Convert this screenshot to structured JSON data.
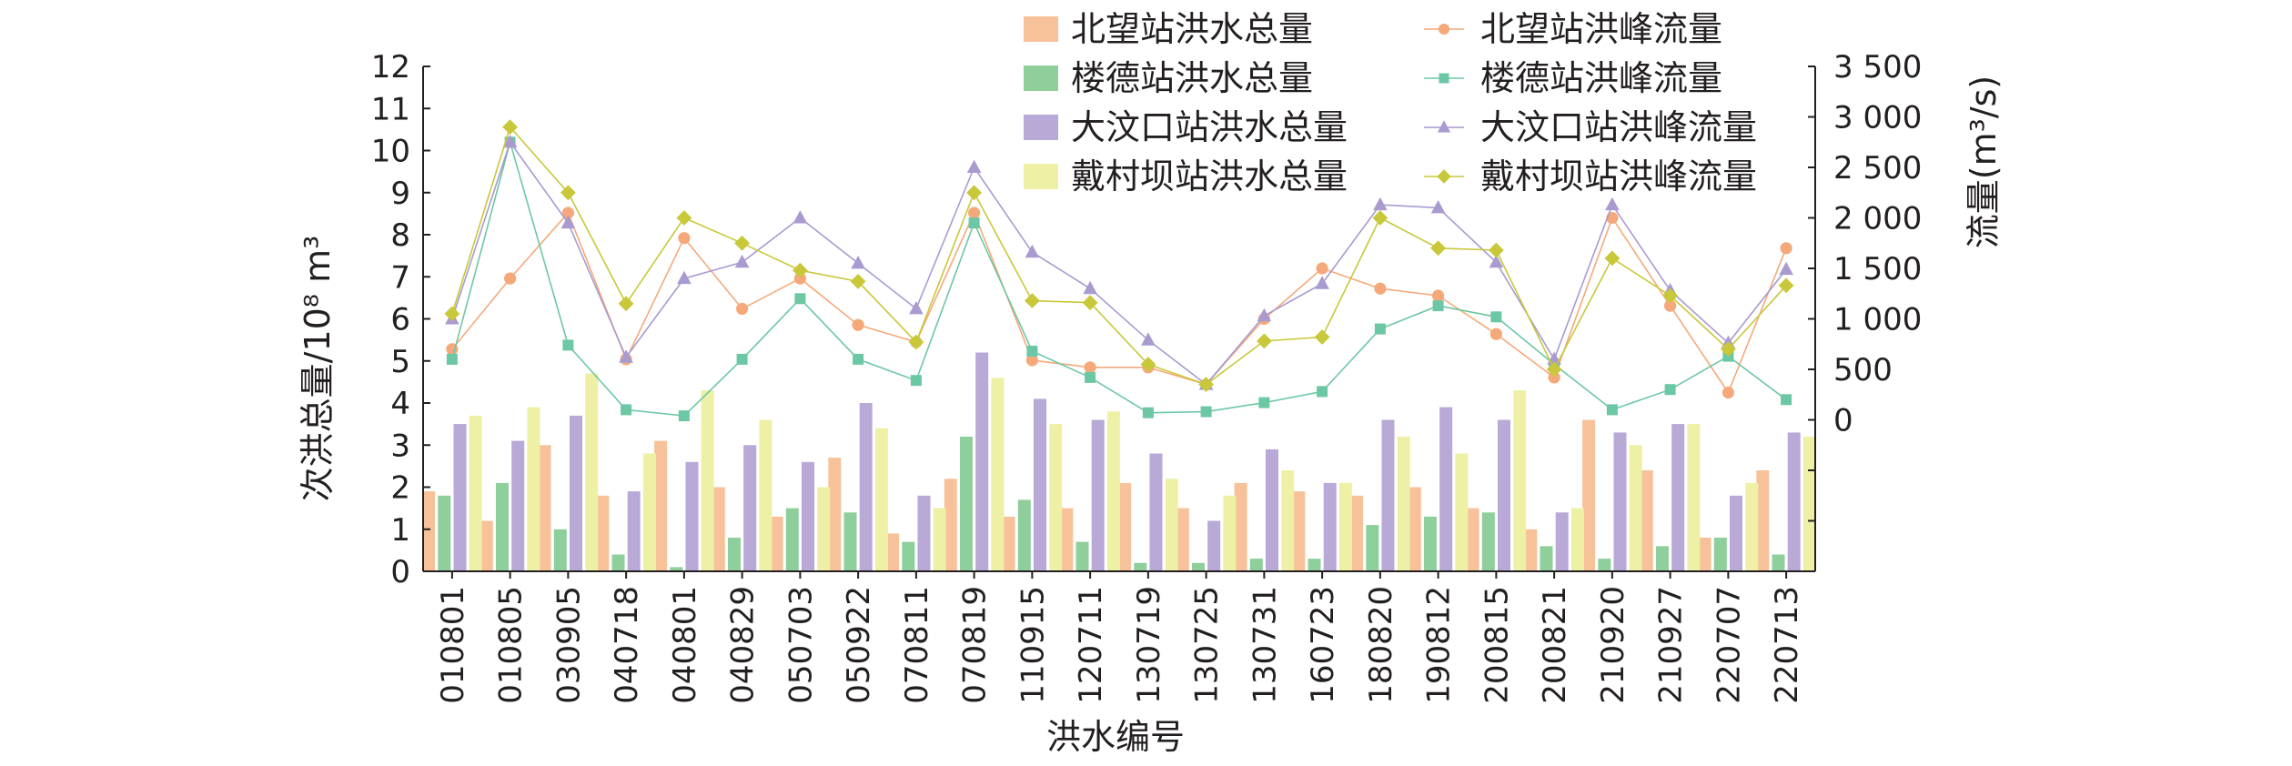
{
  "chart_data": {
    "type": "bar",
    "xlabel": "洪水编号",
    "ylabel_left": "次洪总量/10⁸ m³",
    "ylabel_right": "流量(m³/s)",
    "ylim_left": [
      0,
      12
    ],
    "ylim_right": [
      -1500,
      3500
    ],
    "left_ticks": [
      "0",
      "1",
      "2",
      "3",
      "4",
      "5",
      "6",
      "7",
      "8",
      "9",
      "10",
      "11",
      "12"
    ],
    "right_ticks": [
      "0",
      "500",
      "1 000",
      "1 500",
      "2 000",
      "2 500",
      "3 000",
      "3 500"
    ],
    "grid": false,
    "legend_position": "top-right",
    "categories": [
      "010801",
      "010805",
      "030905",
      "040718",
      "040801",
      "040829",
      "050703",
      "050922",
      "070811",
      "070819",
      "110915",
      "120711",
      "130719",
      "130725",
      "130731",
      "160723",
      "180820",
      "190812",
      "200815",
      "200821",
      "210920",
      "210927",
      "220707",
      "220713"
    ],
    "bar_series": [
      {
        "name": "北望站洪水总量",
        "color": "#f7c29a",
        "axis": "left",
        "values": [
          1.9,
          1.2,
          3.0,
          1.8,
          3.1,
          2.0,
          1.3,
          2.7,
          0.9,
          2.2,
          1.3,
          1.5,
          2.1,
          1.5,
          2.1,
          1.9,
          1.8,
          2.0,
          1.5,
          1.0,
          3.6,
          2.4,
          0.8,
          2.4
        ]
      },
      {
        "name": "楼德站洪水总量",
        "color": "#8ecf9c",
        "axis": "left",
        "values": [
          1.8,
          2.1,
          1.0,
          0.4,
          0.1,
          0.8,
          1.5,
          1.4,
          0.7,
          3.2,
          1.7,
          0.7,
          0.2,
          0.2,
          0.3,
          0.3,
          1.1,
          1.3,
          1.4,
          0.6,
          0.3,
          0.6,
          0.8,
          0.4
        ]
      },
      {
        "name": "大汶口站洪水总量",
        "color": "#b8a9d6",
        "axis": "left",
        "values": [
          3.5,
          3.1,
          3.7,
          1.9,
          2.6,
          3.0,
          2.6,
          4.0,
          1.8,
          5.2,
          4.1,
          3.6,
          2.8,
          1.2,
          2.9,
          2.1,
          3.6,
          3.9,
          3.6,
          1.4,
          3.3,
          3.5,
          1.8,
          3.3
        ]
      },
      {
        "name": "戴村坝站洪水总量",
        "color": "#eef0a6",
        "axis": "left",
        "values": [
          3.7,
          3.9,
          4.7,
          2.8,
          4.3,
          3.6,
          2.0,
          3.4,
          1.5,
          4.6,
          3.5,
          3.8,
          2.2,
          1.8,
          2.4,
          2.1,
          3.2,
          2.8,
          4.3,
          1.5,
          3.0,
          3.5,
          2.1,
          3.2
        ]
      }
    ],
    "line_series": [
      {
        "name": "北望站洪峰流量",
        "color": "#f5a97a",
        "marker": "circle",
        "axis": "right",
        "values": [
          700,
          1400,
          2050,
          600,
          1800,
          1100,
          1400,
          940,
          770,
          2050,
          590,
          520,
          520,
          350,
          1000,
          1500,
          1300,
          1230,
          850,
          420,
          2000,
          1130,
          270,
          1700
        ]
      },
      {
        "name": "楼德站洪峰流量",
        "color": "#6cc8a4",
        "marker": "square",
        "axis": "right",
        "values": [
          600,
          2750,
          740,
          100,
          40,
          600,
          1200,
          600,
          390,
          1950,
          680,
          420,
          70,
          80,
          170,
          280,
          900,
          1130,
          1020,
          550,
          100,
          300,
          630,
          200
        ]
      },
      {
        "name": "大汶口站洪峰流量",
        "color": "#a99ad0",
        "marker": "triangle",
        "axis": "right",
        "values": [
          1000,
          2750,
          1950,
          620,
          1400,
          1560,
          2000,
          1550,
          1100,
          2500,
          1660,
          1300,
          790,
          350,
          1030,
          1350,
          2130,
          2100,
          1560,
          600,
          2130,
          1280,
          760,
          1490
        ]
      },
      {
        "name": "戴村坝站洪峰流量",
        "color": "#c8c83a",
        "marker": "diamond",
        "axis": "right",
        "values": [
          1050,
          2900,
          2250,
          1150,
          2000,
          1750,
          1480,
          1370,
          770,
          2250,
          1180,
          1160,
          550,
          350,
          780,
          820,
          2000,
          1700,
          1680,
          500,
          1600,
          1230,
          700,
          1330
        ]
      }
    ]
  }
}
